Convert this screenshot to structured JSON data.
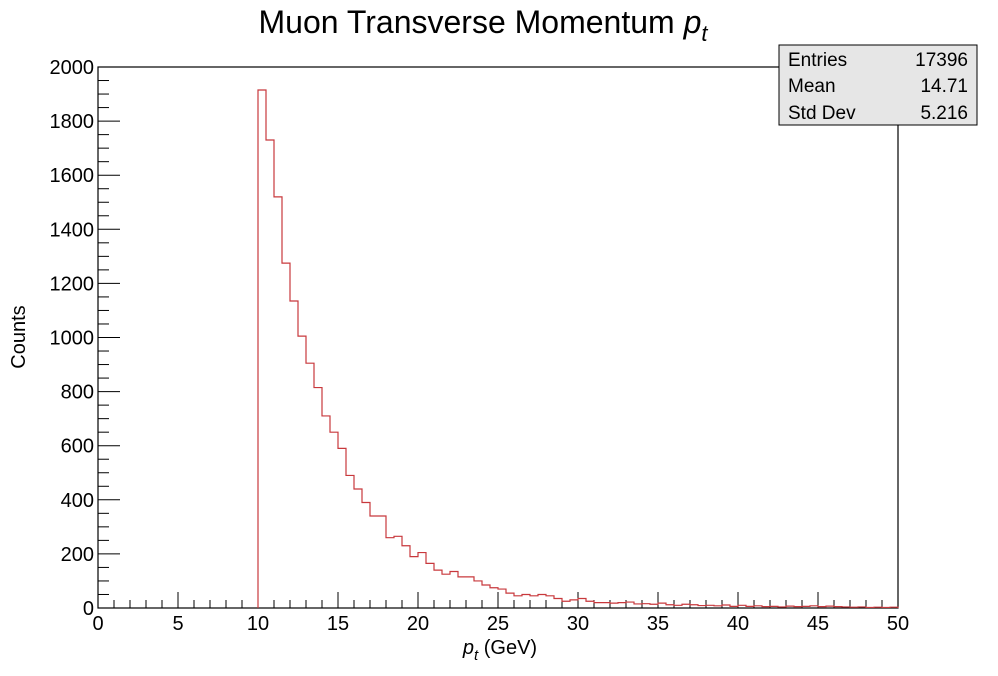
{
  "chart_data": {
    "type": "histogram",
    "title": "Muon Transverse Momentum",
    "title_symbol": "p",
    "title_subscript": "t",
    "xlabel_symbol": "p",
    "xlabel_subscript": "t",
    "xlabel_unit": "(GeV)",
    "ylabel": "Counts",
    "xlim": [
      0,
      50
    ],
    "ylim": [
      0,
      2000
    ],
    "x_ticks": [
      0,
      5,
      10,
      15,
      20,
      25,
      30,
      35,
      40,
      45,
      50
    ],
    "y_ticks": [
      0,
      200,
      400,
      600,
      800,
      1000,
      1200,
      1400,
      1600,
      1800,
      2000
    ],
    "bin_width": 0.5,
    "line_color": "#c8383c",
    "grid": false,
    "legend": "none",
    "stats_box_position": "top-right",
    "bins": [
      {
        "x": 10.0,
        "y": 1915
      },
      {
        "x": 10.5,
        "y": 1730
      },
      {
        "x": 11.0,
        "y": 1520
      },
      {
        "x": 11.5,
        "y": 1275
      },
      {
        "x": 12.0,
        "y": 1135
      },
      {
        "x": 12.5,
        "y": 1005
      },
      {
        "x": 13.0,
        "y": 905
      },
      {
        "x": 13.5,
        "y": 815
      },
      {
        "x": 14.0,
        "y": 710
      },
      {
        "x": 14.5,
        "y": 650
      },
      {
        "x": 15.0,
        "y": 590
      },
      {
        "x": 15.5,
        "y": 490
      },
      {
        "x": 16.0,
        "y": 440
      },
      {
        "x": 16.5,
        "y": 390
      },
      {
        "x": 17.0,
        "y": 340
      },
      {
        "x": 17.5,
        "y": 340
      },
      {
        "x": 18.0,
        "y": 260
      },
      {
        "x": 18.5,
        "y": 265
      },
      {
        "x": 19.0,
        "y": 230
      },
      {
        "x": 19.5,
        "y": 190
      },
      {
        "x": 20.0,
        "y": 205
      },
      {
        "x": 20.5,
        "y": 165
      },
      {
        "x": 21.0,
        "y": 140
      },
      {
        "x": 21.5,
        "y": 125
      },
      {
        "x": 22.0,
        "y": 135
      },
      {
        "x": 22.5,
        "y": 115
      },
      {
        "x": 23.0,
        "y": 115
      },
      {
        "x": 23.5,
        "y": 100
      },
      {
        "x": 24.0,
        "y": 85
      },
      {
        "x": 24.5,
        "y": 75
      },
      {
        "x": 25.0,
        "y": 70
      },
      {
        "x": 25.5,
        "y": 55
      },
      {
        "x": 26.0,
        "y": 45
      },
      {
        "x": 26.5,
        "y": 50
      },
      {
        "x": 27.0,
        "y": 45
      },
      {
        "x": 27.5,
        "y": 50
      },
      {
        "x": 28.0,
        "y": 45
      },
      {
        "x": 28.5,
        "y": 35
      },
      {
        "x": 29.0,
        "y": 25
      },
      {
        "x": 29.5,
        "y": 30
      },
      {
        "x": 30.0,
        "y": 35
      },
      {
        "x": 30.5,
        "y": 25
      },
      {
        "x": 31.0,
        "y": 20
      },
      {
        "x": 31.5,
        "y": 20
      },
      {
        "x": 32.0,
        "y": 18
      },
      {
        "x": 32.5,
        "y": 20
      },
      {
        "x": 33.0,
        "y": 22
      },
      {
        "x": 33.5,
        "y": 15
      },
      {
        "x": 34.0,
        "y": 16
      },
      {
        "x": 34.5,
        "y": 14
      },
      {
        "x": 35.0,
        "y": 18
      },
      {
        "x": 35.5,
        "y": 12
      },
      {
        "x": 36.0,
        "y": 10
      },
      {
        "x": 36.5,
        "y": 14
      },
      {
        "x": 37.0,
        "y": 12
      },
      {
        "x": 37.5,
        "y": 9
      },
      {
        "x": 38.0,
        "y": 10
      },
      {
        "x": 38.5,
        "y": 8
      },
      {
        "x": 39.0,
        "y": 11
      },
      {
        "x": 39.5,
        "y": 6
      },
      {
        "x": 40.0,
        "y": 10
      },
      {
        "x": 40.5,
        "y": 6
      },
      {
        "x": 41.0,
        "y": 8
      },
      {
        "x": 41.5,
        "y": 5
      },
      {
        "x": 42.0,
        "y": 6
      },
      {
        "x": 42.5,
        "y": 4
      },
      {
        "x": 43.0,
        "y": 7
      },
      {
        "x": 43.5,
        "y": 5
      },
      {
        "x": 44.0,
        "y": 6
      },
      {
        "x": 44.5,
        "y": 8
      },
      {
        "x": 45.0,
        "y": 5
      },
      {
        "x": 45.5,
        "y": 7
      },
      {
        "x": 46.0,
        "y": 5
      },
      {
        "x": 46.5,
        "y": 4
      },
      {
        "x": 47.0,
        "y": 3
      },
      {
        "x": 47.5,
        "y": 4
      },
      {
        "x": 48.0,
        "y": 2
      },
      {
        "x": 48.5,
        "y": 3
      },
      {
        "x": 49.0,
        "y": 2
      },
      {
        "x": 49.5,
        "y": 3
      }
    ],
    "stats": [
      {
        "label": "Entries",
        "value": "17396"
      },
      {
        "label": "Mean",
        "value": "14.71"
      },
      {
        "label": "Std Dev",
        "value": "5.216"
      }
    ]
  }
}
